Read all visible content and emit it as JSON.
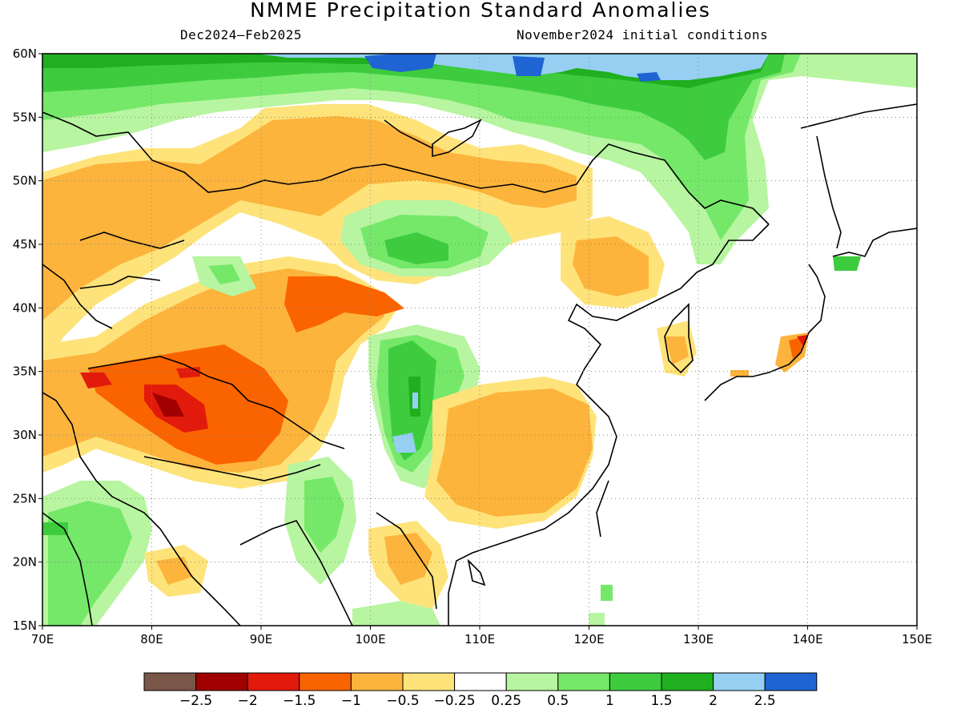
{
  "title": "NMME Precipitation Standard Anomalies",
  "period": "Dec2024–Feb2025",
  "init": "November2024 initial conditions",
  "map": {
    "lon_range": [
      70,
      150
    ],
    "lat_range": [
      15,
      60
    ],
    "lon_ticks": [
      {
        "value": 70,
        "label": "70E"
      },
      {
        "value": 80,
        "label": "80E"
      },
      {
        "value": 90,
        "label": "90E"
      },
      {
        "value": 100,
        "label": "100E"
      },
      {
        "value": 110,
        "label": "110E"
      },
      {
        "value": 120,
        "label": "120E"
      },
      {
        "value": 130,
        "label": "130E"
      },
      {
        "value": 140,
        "label": "140E"
      },
      {
        "value": 150,
        "label": "150E"
      }
    ],
    "lat_ticks": [
      {
        "value": 15,
        "label": "15N"
      },
      {
        "value": 20,
        "label": "20N"
      },
      {
        "value": 25,
        "label": "25N"
      },
      {
        "value": 30,
        "label": "30N"
      },
      {
        "value": 35,
        "label": "35N"
      },
      {
        "value": 40,
        "label": "40N"
      },
      {
        "value": 45,
        "label": "45N"
      },
      {
        "value": 50,
        "label": "50N"
      },
      {
        "value": 55,
        "label": "55N"
      },
      {
        "value": 60,
        "label": "60N"
      }
    ],
    "gridlines": "dotted"
  },
  "colorbar": {
    "colors": [
      "#7a5648",
      "#a00000",
      "#e21a0c",
      "#fa6400",
      "#fcb43c",
      "#fde37a",
      "#ffffff",
      "#b7f5a0",
      "#75e86a",
      "#3ecc3e",
      "#1faf1f",
      "#96cff2",
      "#1e64d2"
    ],
    "labels": [
      "−2.5",
      "−2",
      "−1.5",
      "−1",
      "−0.5",
      "−0.25",
      "0.25",
      "0.5",
      "1",
      "1.5",
      "2",
      "2.5"
    ]
  }
}
